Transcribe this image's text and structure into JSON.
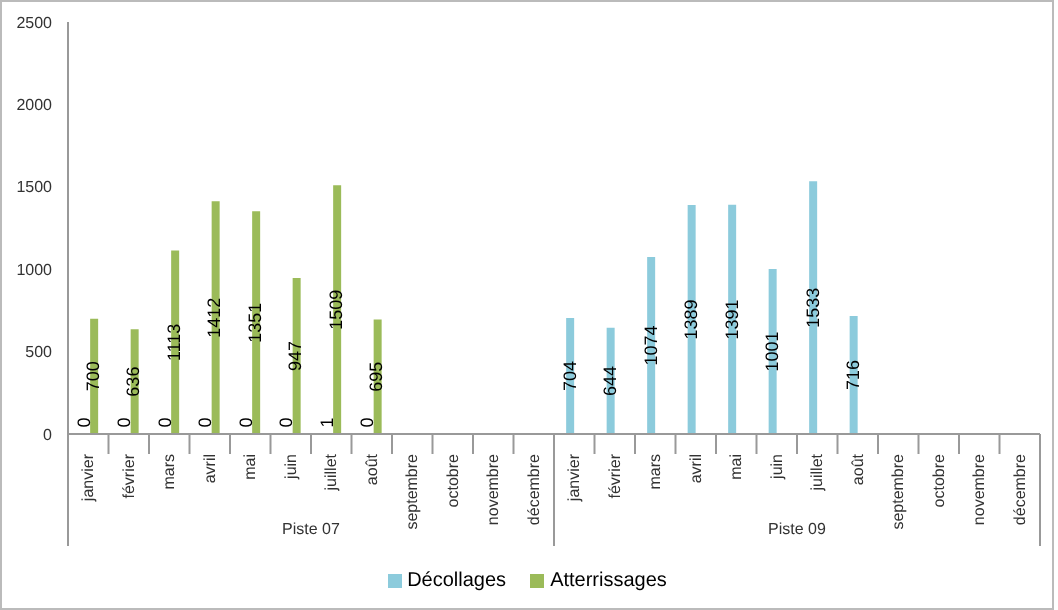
{
  "chart_data": {
    "type": "bar",
    "categories": [
      "janvier",
      "février",
      "mars",
      "avril",
      "mai",
      "juin",
      "juillet",
      "août",
      "septembre",
      "octobre",
      "novembre",
      "décembre",
      "janvier",
      "février",
      "mars",
      "avril",
      "mai",
      "juin",
      "juillet",
      "août",
      "septembre",
      "octobre",
      "novembre",
      "décembre"
    ],
    "series": [
      {
        "name": "Décollages",
        "color": "#8ccbdc",
        "values": [
          0,
          0,
          0,
          0,
          0,
          0,
          1,
          0,
          null,
          null,
          null,
          null,
          704,
          644,
          1074,
          1389,
          1391,
          1001,
          1533,
          716,
          null,
          null,
          null,
          null
        ]
      },
      {
        "name": "Atterrissages",
        "color": "#9bbb59",
        "values": [
          700,
          636,
          1113,
          1412,
          1351,
          947,
          1509,
          695,
          null,
          null,
          null,
          null,
          null,
          null,
          null,
          null,
          null,
          null,
          null,
          null,
          null,
          null,
          null,
          null
        ]
      }
    ],
    "annotations": [
      "Piste 07",
      "Piste 09"
    ],
    "ylim": [
      0,
      2500
    ],
    "yticks": [
      0,
      500,
      1000,
      1500,
      2000,
      2500
    ],
    "grid": false,
    "legend": "bottom",
    "data_labels": true
  }
}
